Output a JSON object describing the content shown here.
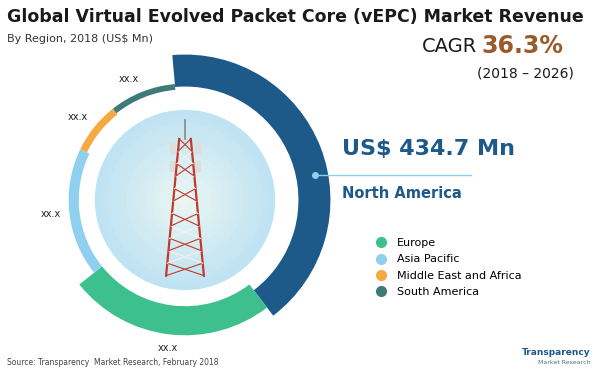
{
  "chart_data": {
    "type": "donut",
    "title": "Global Virtual Evolved Packet Core (vEPC) Market Revenue",
    "subtitle": "By Region, 2018 (US$ Mn)",
    "categories": [
      "North America",
      "Europe",
      "Asia Pacific",
      "Middle East and Africa",
      "South America"
    ],
    "values": [
      434.7,
      261,
      190,
      76,
      98
    ],
    "value_labels": [
      "US$ 434.7 Mn",
      "xx.x",
      "xx.x",
      "xx.x",
      "xx.x"
    ],
    "colors": [
      "#1d5a8a",
      "#3dbf8e",
      "#8fd0ef",
      "#f5a93f",
      "#3e7a78"
    ],
    "data_labels": true,
    "legend": "center left",
    "annotations": [
      "CAGR",
      "36.3%",
      "(2018 – 2026)"
    ],
    "source": "Source: Transparency  Market Research, February 2018",
    "logo": [
      "Transparency",
      "Market Research"
    ]
  }
}
